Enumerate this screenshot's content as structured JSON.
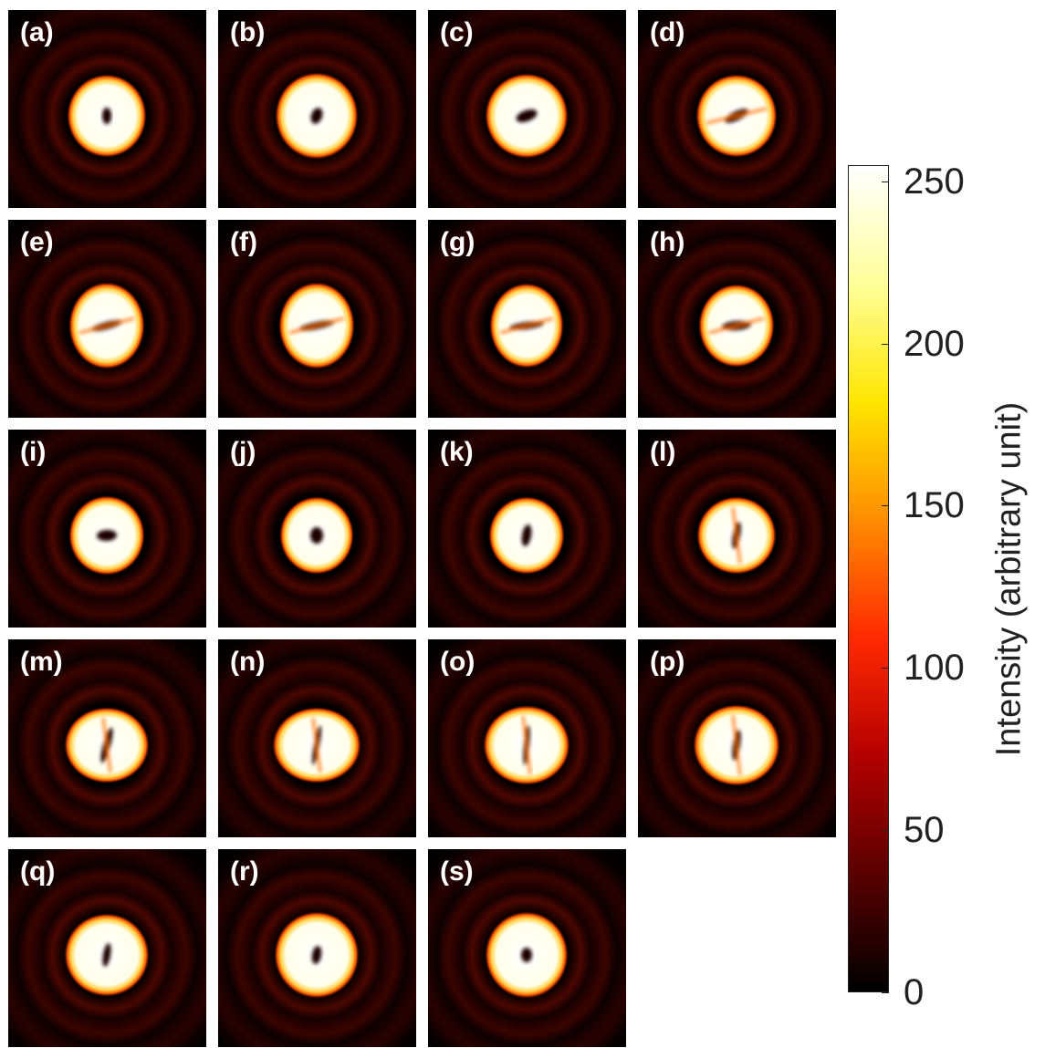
{
  "panels": [
    {
      "label": "(a)"
    },
    {
      "label": "(b)"
    },
    {
      "label": "(c)"
    },
    {
      "label": "(d)"
    },
    {
      "label": "(e)"
    },
    {
      "label": "(f)"
    },
    {
      "label": "(g)"
    },
    {
      "label": "(h)"
    },
    {
      "label": "(i)"
    },
    {
      "label": "(j)"
    },
    {
      "label": "(k)"
    },
    {
      "label": "(l)"
    },
    {
      "label": "(m)"
    },
    {
      "label": "(n)"
    },
    {
      "label": "(o)"
    },
    {
      "label": "(p)"
    },
    {
      "label": "(q)"
    },
    {
      "label": "(r)"
    },
    {
      "label": "(s)"
    }
  ],
  "colorbar": {
    "title": "Intensity (arbitrary unit)",
    "ticks": [
      "0",
      "50",
      "100",
      "150",
      "200",
      "250"
    ],
    "tick_values": [
      0,
      50,
      100,
      150,
      200,
      250
    ],
    "range": [
      0,
      255
    ],
    "colormap": "hot",
    "colors": [
      "#000000",
      "#5a0000",
      "#b40000",
      "#ff2a00",
      "#ff8c00",
      "#ffe600",
      "#ffff9a",
      "#ffffff"
    ]
  }
}
